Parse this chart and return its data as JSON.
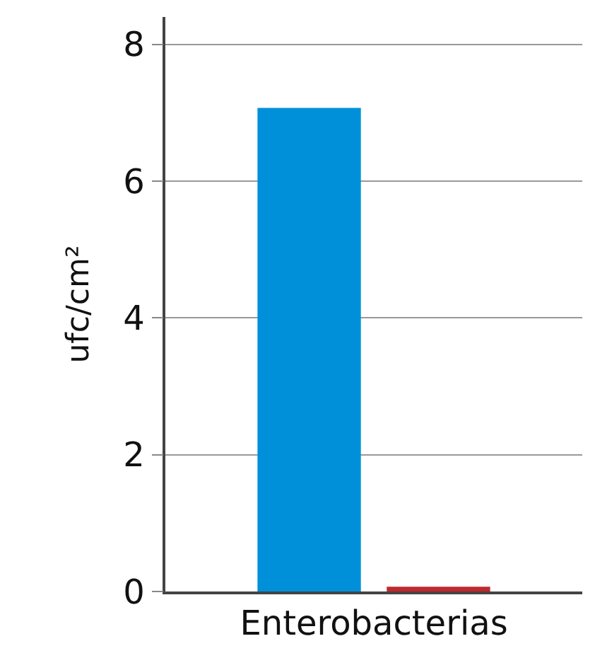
{
  "chart_data": {
    "type": "bar",
    "ylabel": "ufc/cm²",
    "categories": [
      "Enterobacterias"
    ],
    "series": [
      {
        "color": "#0090da",
        "values": [
          7.07
        ]
      },
      {
        "color": "#c0282d",
        "values": [
          0.07
        ]
      }
    ],
    "ylim": [
      0,
      8.4
    ],
    "yticks": [
      0,
      2,
      4,
      6,
      8
    ],
    "grid": "y"
  }
}
